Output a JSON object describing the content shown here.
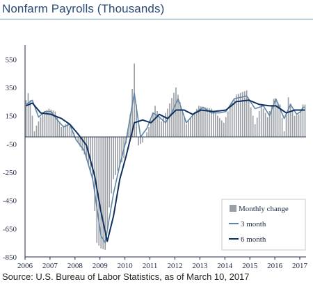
{
  "title": "Nonfarm Payrolls (Thousands)",
  "source": "Source: U.S. Bureau of Labor Statistics, as of March 10, 2017",
  "chart_data": {
    "type": "bar",
    "title": "Nonfarm Payrolls (Thousands)",
    "xlabel": "",
    "ylabel": "",
    "ylim": [
      -850,
      650
    ],
    "yticks": [
      550,
      350,
      150,
      -50,
      -250,
      -450,
      -650,
      -850
    ],
    "xticks": [
      "2006",
      "2007",
      "2008",
      "2009",
      "2010",
      "2011",
      "2012",
      "2013",
      "2014",
      "2015",
      "2016",
      "2017"
    ],
    "grid": false,
    "legend_position": "bottom-right",
    "colors": {
      "bars": "#9a9ea5",
      "three_month": "#5f86a8",
      "six_month": "#0f2f5f"
    },
    "x_start_month": "2006-01",
    "series": [
      {
        "name": "Monthly change",
        "kind": "bar",
        "anchors": [
          {
            "month": "2006-01",
            "value": 260
          },
          {
            "month": "2006-02",
            "value": 310
          },
          {
            "month": "2006-03",
            "value": 260
          },
          {
            "month": "2006-04",
            "value": 150
          },
          {
            "month": "2006-05",
            "value": 40
          },
          {
            "month": "2006-06",
            "value": 80
          },
          {
            "month": "2006-09",
            "value": 170
          },
          {
            "month": "2006-12",
            "value": 200
          },
          {
            "month": "2007-03",
            "value": 180
          },
          {
            "month": "2007-06",
            "value": 70
          },
          {
            "month": "2007-09",
            "value": 100
          },
          {
            "month": "2007-12",
            "value": 30
          },
          {
            "month": "2008-03",
            "value": -70
          },
          {
            "month": "2008-06",
            "value": -150
          },
          {
            "month": "2008-09",
            "value": -300
          },
          {
            "month": "2008-11",
            "value": -750
          },
          {
            "month": "2009-01",
            "value": -790
          },
          {
            "month": "2009-03",
            "value": -800
          },
          {
            "month": "2009-05",
            "value": -500
          },
          {
            "month": "2009-07",
            "value": -300
          },
          {
            "month": "2009-09",
            "value": -240
          },
          {
            "month": "2009-12",
            "value": -150
          },
          {
            "month": "2010-03",
            "value": 160
          },
          {
            "month": "2010-05",
            "value": 520
          },
          {
            "month": "2010-07",
            "value": -60
          },
          {
            "month": "2010-09",
            "value": -40
          },
          {
            "month": "2010-12",
            "value": 70
          },
          {
            "month": "2011-03",
            "value": 220
          },
          {
            "month": "2011-06",
            "value": 110
          },
          {
            "month": "2011-09",
            "value": 200
          },
          {
            "month": "2012-01",
            "value": 350
          },
          {
            "month": "2012-06",
            "value": 90
          },
          {
            "month": "2012-12",
            "value": 220
          },
          {
            "month": "2013-06",
            "value": 200
          },
          {
            "month": "2013-12",
            "value": 100
          },
          {
            "month": "2014-03",
            "value": 220
          },
          {
            "month": "2014-06",
            "value": 300
          },
          {
            "month": "2014-11",
            "value": 330
          },
          {
            "month": "2015-03",
            "value": 90
          },
          {
            "month": "2015-06",
            "value": 230
          },
          {
            "month": "2015-09",
            "value": 140
          },
          {
            "month": "2015-12",
            "value": 270
          },
          {
            "month": "2016-03",
            "value": 230
          },
          {
            "month": "2016-05",
            "value": 40
          },
          {
            "month": "2016-07",
            "value": 280
          },
          {
            "month": "2016-10",
            "value": 150
          },
          {
            "month": "2016-12",
            "value": 160
          },
          {
            "month": "2017-02",
            "value": 230
          }
        ]
      },
      {
        "name": "3 month",
        "kind": "line",
        "anchors": [
          {
            "month": "2006-01",
            "value": 230
          },
          {
            "month": "2006-04",
            "value": 260
          },
          {
            "month": "2006-07",
            "value": 140
          },
          {
            "month": "2006-10",
            "value": 180
          },
          {
            "month": "2007-01",
            "value": 180
          },
          {
            "month": "2007-04",
            "value": 120
          },
          {
            "month": "2007-07",
            "value": 70
          },
          {
            "month": "2007-10",
            "value": 90
          },
          {
            "month": "2008-01",
            "value": -20
          },
          {
            "month": "2008-05",
            "value": -100
          },
          {
            "month": "2008-09",
            "value": -300
          },
          {
            "month": "2009-01",
            "value": -700
          },
          {
            "month": "2009-03",
            "value": -750
          },
          {
            "month": "2009-07",
            "value": -400
          },
          {
            "month": "2009-10",
            "value": -200
          },
          {
            "month": "2010-01",
            "value": -30
          },
          {
            "month": "2010-05",
            "value": 310
          },
          {
            "month": "2010-08",
            "value": 0
          },
          {
            "month": "2010-11",
            "value": 60
          },
          {
            "month": "2011-02",
            "value": 170
          },
          {
            "month": "2011-05",
            "value": 140
          },
          {
            "month": "2011-08",
            "value": 100
          },
          {
            "month": "2011-11",
            "value": 170
          },
          {
            "month": "2012-02",
            "value": 270
          },
          {
            "month": "2012-06",
            "value": 100
          },
          {
            "month": "2012-10",
            "value": 170
          },
          {
            "month": "2013-02",
            "value": 210
          },
          {
            "month": "2013-06",
            "value": 170
          },
          {
            "month": "2013-10",
            "value": 170
          },
          {
            "month": "2014-01",
            "value": 180
          },
          {
            "month": "2014-05",
            "value": 270
          },
          {
            "month": "2014-11",
            "value": 290
          },
          {
            "month": "2015-03",
            "value": 200
          },
          {
            "month": "2015-07",
            "value": 220
          },
          {
            "month": "2015-10",
            "value": 150
          },
          {
            "month": "2016-01",
            "value": 270
          },
          {
            "month": "2016-05",
            "value": 130
          },
          {
            "month": "2016-08",
            "value": 230
          },
          {
            "month": "2016-11",
            "value": 160
          },
          {
            "month": "2017-01",
            "value": 180
          },
          {
            "month": "2017-02",
            "value": 210
          }
        ]
      },
      {
        "name": "6 month",
        "kind": "line",
        "anchors": [
          {
            "month": "2006-01",
            "value": 220
          },
          {
            "month": "2006-04",
            "value": 240
          },
          {
            "month": "2006-08",
            "value": 170
          },
          {
            "month": "2007-01",
            "value": 160
          },
          {
            "month": "2007-06",
            "value": 130
          },
          {
            "month": "2007-10",
            "value": 90
          },
          {
            "month": "2008-02",
            "value": 20
          },
          {
            "month": "2008-06",
            "value": -60
          },
          {
            "month": "2008-10",
            "value": -280
          },
          {
            "month": "2009-01",
            "value": -530
          },
          {
            "month": "2009-04",
            "value": -740
          },
          {
            "month": "2009-07",
            "value": -560
          },
          {
            "month": "2009-10",
            "value": -300
          },
          {
            "month": "2010-01",
            "value": -140
          },
          {
            "month": "2010-05",
            "value": 100
          },
          {
            "month": "2010-09",
            "value": 120
          },
          {
            "month": "2011-01",
            "value": 100
          },
          {
            "month": "2011-05",
            "value": 160
          },
          {
            "month": "2011-09",
            "value": 130
          },
          {
            "month": "2012-01",
            "value": 190
          },
          {
            "month": "2012-05",
            "value": 190
          },
          {
            "month": "2012-09",
            "value": 160
          },
          {
            "month": "2013-01",
            "value": 190
          },
          {
            "month": "2013-07",
            "value": 180
          },
          {
            "month": "2014-01",
            "value": 190
          },
          {
            "month": "2014-06",
            "value": 250
          },
          {
            "month": "2014-12",
            "value": 260
          },
          {
            "month": "2015-05",
            "value": 230
          },
          {
            "month": "2015-10",
            "value": 220
          },
          {
            "month": "2016-01",
            "value": 220
          },
          {
            "month": "2016-06",
            "value": 170
          },
          {
            "month": "2016-10",
            "value": 190
          },
          {
            "month": "2017-02",
            "value": 190
          }
        ]
      }
    ]
  }
}
